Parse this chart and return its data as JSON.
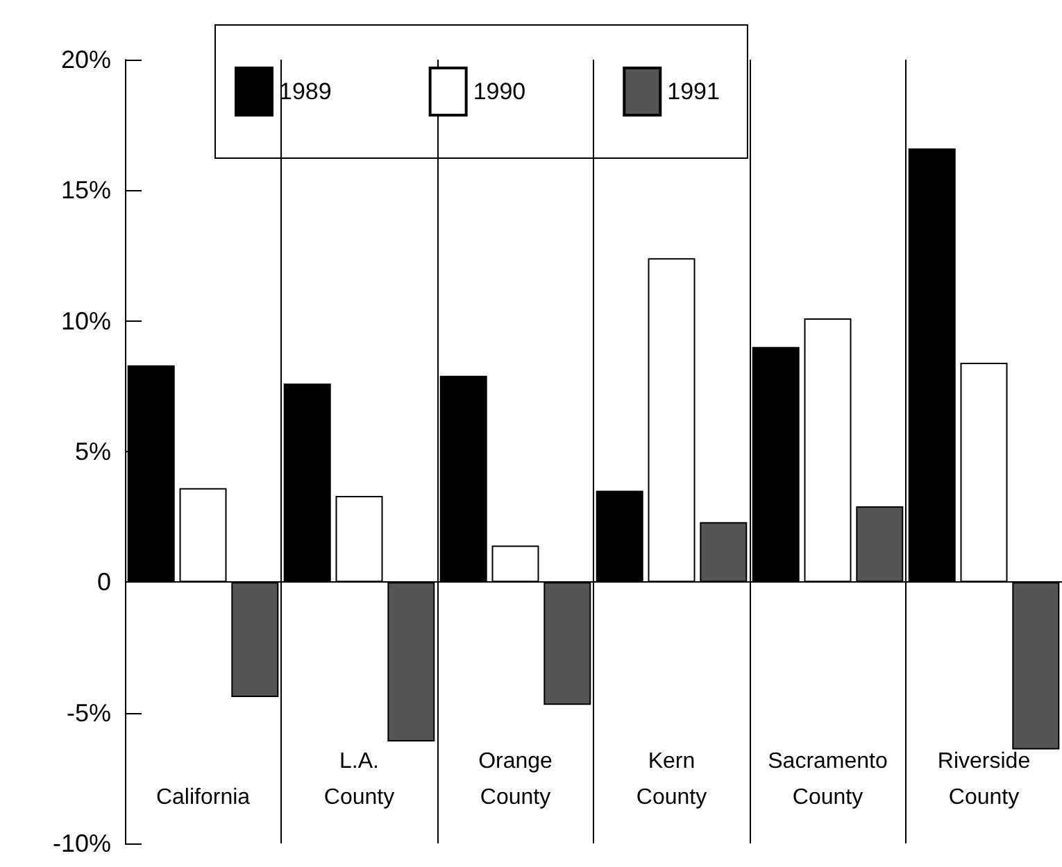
{
  "chart_data": {
    "type": "bar",
    "categories": [
      "California",
      "L.A.\nCounty",
      "Orange\nCounty",
      "Kern\nCounty",
      "Sacramento\nCounty",
      "Riverside\nCounty"
    ],
    "series": [
      {
        "name": "1989",
        "color": "#000000",
        "values": [
          8.3,
          7.6,
          7.9,
          3.5,
          9.0,
          16.6
        ]
      },
      {
        "name": "1990",
        "color": "#ffffff",
        "values": [
          3.6,
          3.3,
          1.4,
          12.4,
          10.1,
          8.4
        ]
      },
      {
        "name": "1991",
        "color": "#555555",
        "values": [
          -4.4,
          -6.1,
          -4.7,
          2.3,
          2.9,
          -6.4
        ]
      }
    ],
    "ylim": [
      -10,
      20
    ],
    "yticks": [
      {
        "value": -10,
        "label": "-10%"
      },
      {
        "value": -5,
        "label": "-5%"
      },
      {
        "value": 0,
        "label": "0"
      },
      {
        "value": 5,
        "label": "5%"
      },
      {
        "value": 10,
        "label": "10%"
      },
      {
        "value": 15,
        "label": "15%"
      },
      {
        "value": 20,
        "label": "20%"
      }
    ],
    "grid": "x",
    "ref_lines": [
      {
        "axis": "y",
        "value": 0,
        "color": "#000000"
      }
    ],
    "legend": "top left"
  }
}
